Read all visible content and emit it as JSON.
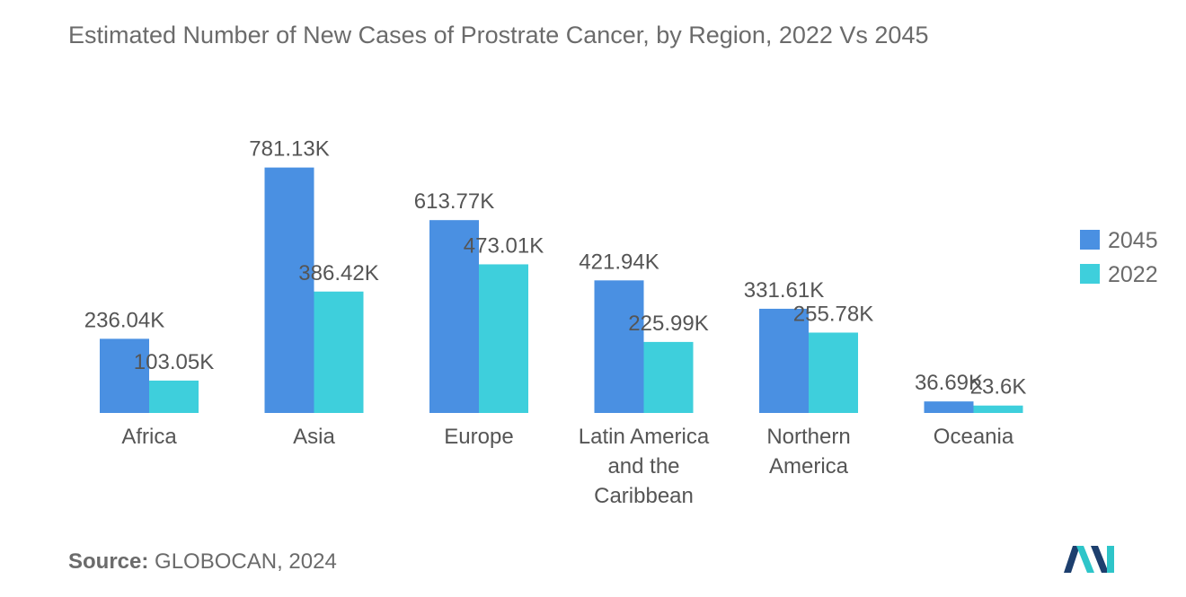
{
  "chart_data": {
    "type": "bar",
    "title": "Estimated Number of New Cases of Prostrate Cancer, by Region, 2022 Vs 2045",
    "categories": [
      [
        "Africa"
      ],
      [
        "Asia"
      ],
      [
        "Europe"
      ],
      [
        "Latin America",
        "and the",
        "Caribbean"
      ],
      [
        "Northern",
        "America"
      ],
      [
        "Oceania"
      ]
    ],
    "series": [
      {
        "name": "2045",
        "color": "#4a90e2",
        "values": [
          236.04,
          781.13,
          613.77,
          421.94,
          331.61,
          36.69
        ],
        "labels": [
          "236.04K",
          "781.13K",
          "613.77K",
          "421.94K",
          "331.61K",
          "36.69K"
        ]
      },
      {
        "name": "2022",
        "color": "#3ecfdc",
        "values": [
          103.05,
          386.42,
          473.01,
          225.99,
          255.78,
          23.6
        ],
        "labels": [
          "103.05K",
          "386.42K",
          "473.01K",
          "225.99K",
          "255.78K",
          "23.6K"
        ]
      }
    ],
    "xlabel": "",
    "ylabel": "",
    "unit": "K",
    "ylim": [
      0,
      800
    ],
    "grid": false,
    "legend_position": "right"
  },
  "source": {
    "label": "Source:",
    "text": "GLOBOCAN, 2024"
  },
  "logo": {
    "name": "mordor-intelligence-logo",
    "colors": [
      "#1d3f6e",
      "#2ec5c9"
    ]
  }
}
